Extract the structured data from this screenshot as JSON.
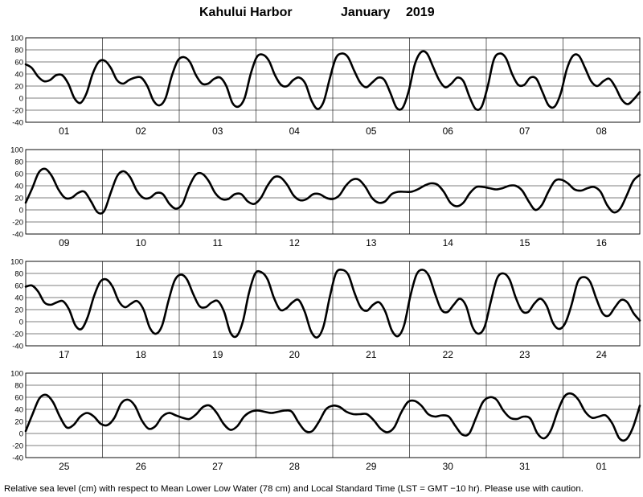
{
  "chart_data": {
    "type": "line",
    "title": "Kahului Harbor",
    "title_month": "January",
    "title_year": "2019",
    "ylabel": "",
    "xlabel": "",
    "ylim": [
      -40,
      100
    ],
    "yticks": [
      -40,
      -20,
      0,
      20,
      40,
      60,
      80,
      100
    ],
    "grid": true,
    "footer": "Relative sea level (cm) with respect to Mean Lower Low Water (78 cm) and Local Standard Time (LST = GMT −10 hr). Please use with caution.",
    "panels": [
      {
        "days": [
          "01",
          "02",
          "03",
          "04",
          "05",
          "06",
          "07",
          "08"
        ],
        "series": [
          {
            "values": [
              56,
              50,
              36,
              28,
              30,
              38,
              38,
              24,
              0,
              -8,
              8,
              40,
              60,
              62,
              50,
              30,
              24,
              30,
              34,
              34,
              20,
              -4,
              -12,
              0,
              36,
              62,
              68,
              60,
              38,
              24,
              24,
              32,
              34,
              20,
              -8,
              -14,
              0,
              40,
              68,
              72,
              62,
              38,
              22,
              20,
              30,
              34,
              24,
              -4,
              -18,
              -6,
              32,
              66,
              74,
              68,
              46,
              26,
              18,
              26,
              34,
              30,
              8,
              -16,
              -16,
              12,
              56,
              76,
              74,
              52,
              30,
              18,
              24,
              34,
              28,
              2,
              -18,
              -14,
              20,
              64,
              74,
              66,
              40,
              22,
              22,
              34,
              32,
              10,
              -12,
              -14,
              8,
              48,
              70,
              70,
              50,
              28,
              20,
              28,
              32,
              18,
              -2,
              -10,
              -2,
              10
            ]
          }
        ]
      },
      {
        "days": [
          "09",
          "10",
          "11",
          "12",
          "13",
          "14",
          "15",
          "16"
        ],
        "series": [
          {
            "values": [
              12,
              36,
              62,
              68,
              56,
              34,
              20,
              20,
              28,
              30,
              14,
              -4,
              -2,
              28,
              56,
              64,
              54,
              32,
              20,
              20,
              28,
              26,
              10,
              2,
              10,
              38,
              58,
              60,
              48,
              28,
              18,
              18,
              26,
              26,
              14,
              10,
              20,
              40,
              54,
              54,
              42,
              24,
              16,
              18,
              26,
              26,
              20,
              18,
              24,
              40,
              50,
              50,
              38,
              20,
              12,
              14,
              26,
              30,
              30,
              30,
              34,
              40,
              44,
              42,
              30,
              12,
              6,
              12,
              28,
              38,
              38,
              36,
              34,
              36,
              40,
              40,
              32,
              14,
              0,
              8,
              30,
              48,
              50,
              44,
              34,
              32,
              36,
              38,
              30,
              8,
              -4,
              2,
              24,
              48,
              58
            ]
          }
        ]
      },
      {
        "days": [
          "17",
          "18",
          "19",
          "20",
          "21",
          "22",
          "23",
          "24"
        ],
        "series": [
          {
            "values": [
              58,
              60,
              50,
              32,
              28,
              32,
              34,
              20,
              -6,
              -12,
              8,
              42,
              66,
              70,
              58,
              34,
              24,
              30,
              34,
              20,
              -10,
              -20,
              -6,
              34,
              68,
              78,
              70,
              46,
              26,
              24,
              32,
              34,
              16,
              -18,
              -24,
              0,
              48,
              80,
              82,
              70,
              40,
              20,
              22,
              32,
              36,
              16,
              -16,
              -26,
              -8,
              40,
              80,
              86,
              78,
              48,
              24,
              18,
              28,
              32,
              16,
              -14,
              -24,
              -6,
              42,
              78,
              86,
              76,
              46,
              20,
              16,
              28,
              38,
              26,
              -8,
              -20,
              -8,
              34,
              72,
              80,
              70,
              40,
              18,
              16,
              30,
              38,
              26,
              -2,
              -12,
              -2,
              28,
              66,
              74,
              66,
              38,
              14,
              10,
              24,
              36,
              32,
              14,
              2
            ]
          }
        ]
      },
      {
        "days": [
          "25",
          "26",
          "27",
          "28",
          "29",
          "30",
          "31",
          "01"
        ],
        "series": [
          {
            "values": [
              4,
              32,
              58,
              64,
              52,
              28,
              10,
              14,
              28,
              34,
              28,
              16,
              14,
              26,
              50,
              56,
              46,
              22,
              8,
              12,
              28,
              34,
              30,
              26,
              24,
              32,
              44,
              46,
              34,
              16,
              6,
              12,
              28,
              36,
              38,
              36,
              34,
              36,
              38,
              36,
              18,
              4,
              4,
              20,
              40,
              46,
              44,
              36,
              32,
              32,
              32,
              22,
              8,
              2,
              10,
              34,
              52,
              54,
              46,
              32,
              28,
              30,
              28,
              12,
              -2,
              0,
              26,
              52,
              60,
              56,
              38,
              26,
              24,
              28,
              24,
              0,
              -8,
              6,
              38,
              62,
              66,
              56,
              36,
              26,
              28,
              30,
              16,
              -8,
              -10,
              10,
              46
            ]
          }
        ]
      }
    ]
  }
}
